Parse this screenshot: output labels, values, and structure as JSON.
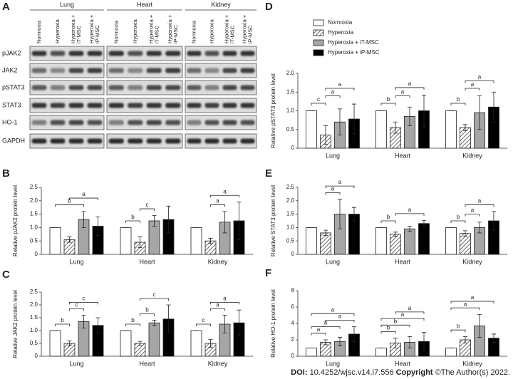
{
  "blot": {
    "panel": "A",
    "tissues": [
      "Lung",
      "Heart",
      "Kidney"
    ],
    "lanes": [
      "Normoxia",
      "Hyperoxia",
      "Hyperoxia + iT-MSC",
      "Hyperoxia + iP-MSC"
    ],
    "proteins": [
      "pJAK2",
      "JAK2",
      "pSTAT3",
      "STAT3",
      "HO-1",
      "GAPDH"
    ]
  },
  "chart_data": [
    {
      "type": "bar",
      "panel": "B",
      "ylabel": "Relative pJAK2 protein level",
      "categories": [
        "Lung",
        "Heart",
        "Kidney"
      ],
      "ylim": [
        0,
        2.5
      ],
      "yticks": [
        0,
        0.5,
        {
          "value": 1,
          "label": "1.0"
        },
        1.5,
        {
          "value": 2,
          "label": "2.0"
        },
        2.5
      ],
      "series": [
        {
          "color": "#ffffff",
          "values": [
            1.0,
            1.0,
            1.0
          ],
          "errors": [
            0,
            0,
            0
          ]
        },
        {
          "color": "#ffffff",
          "hatch": true,
          "values": [
            0.55,
            0.45,
            0.5
          ],
          "errors": [
            0.1,
            0.2,
            0.1
          ]
        },
        {
          "color": "#a6a6a6",
          "values": [
            1.3,
            1.25,
            1.2
          ],
          "errors": [
            0.3,
            0.2,
            0.4
          ]
        },
        {
          "color": "#000000",
          "values": [
            1.05,
            1.3,
            1.25
          ],
          "errors": [
            0.35,
            0.5,
            0.7
          ]
        }
      ],
      "annotations": [
        {
          "label": "b",
          "group": 0,
          "from": 0,
          "to": 2
        },
        {
          "label": "a",
          "group": 0,
          "from": 1,
          "to": 3
        },
        {
          "label": "b",
          "group": 1,
          "from": 0,
          "to": 1
        },
        {
          "label": "c",
          "group": 1,
          "from": 1,
          "to": 2
        },
        {
          "label": "a",
          "group": 2,
          "from": 1,
          "to": 2
        },
        {
          "label": "a",
          "group": 2,
          "from": 1,
          "to": 3
        }
      ]
    },
    {
      "type": "bar",
      "panel": "C",
      "ylabel": "Relative JAK2 protein level",
      "categories": [
        "Lung",
        "Heart",
        "Kidney"
      ],
      "ylim": [
        0,
        2.5
      ],
      "yticks": [
        0,
        0.5,
        {
          "value": 1,
          "label": "1.0"
        },
        1.5,
        {
          "value": 2,
          "label": "2.0"
        },
        2.5
      ],
      "series": [
        {
          "color": "#ffffff",
          "values": [
            1.0,
            1.0,
            1.0
          ],
          "errors": [
            0,
            0,
            0
          ]
        },
        {
          "color": "#ffffff",
          "hatch": true,
          "values": [
            0.5,
            0.5,
            0.5
          ],
          "errors": [
            0.1,
            0.08,
            0.15
          ]
        },
        {
          "color": "#a6a6a6",
          "values": [
            1.35,
            1.3,
            1.25
          ],
          "errors": [
            0.25,
            0.1,
            0.35
          ]
        },
        {
          "color": "#000000",
          "values": [
            1.2,
            1.45,
            1.3
          ],
          "errors": [
            0.3,
            0.55,
            0.5
          ]
        }
      ],
      "annotations": [
        {
          "label": "b",
          "group": 0,
          "from": 0,
          "to": 1
        },
        {
          "label": "c",
          "group": 0,
          "from": 1,
          "to": 2
        },
        {
          "label": "c",
          "group": 0,
          "from": 1,
          "to": 3
        },
        {
          "label": "b",
          "group": 1,
          "from": 0,
          "to": 1
        },
        {
          "label": "b",
          "group": 1,
          "from": 1,
          "to": 2
        },
        {
          "label": "c",
          "group": 1,
          "from": 1,
          "to": 3
        },
        {
          "label": "c",
          "group": 2,
          "from": 0,
          "to": 1
        },
        {
          "label": "a",
          "group": 2,
          "from": 1,
          "to": 2
        },
        {
          "label": "a",
          "group": 2,
          "from": 1,
          "to": 3
        }
      ]
    },
    {
      "type": "bar",
      "panel": "D",
      "ylabel": "Relative pSTAT3 protein level",
      "categories": [
        "Lung",
        "Heart",
        "Kidney"
      ],
      "ylim": [
        0,
        2.0
      ],
      "yticks": [
        0,
        0.5,
        {
          "value": 1,
          "label": "1.0"
        },
        1.5,
        {
          "value": 2,
          "label": "2.0"
        }
      ],
      "series": [
        {
          "name": "Normoxia",
          "color": "#ffffff",
          "values": [
            1.0,
            1.0,
            1.0
          ],
          "errors": [
            0,
            0,
            0
          ]
        },
        {
          "name": "Hyperoxia",
          "color": "#ffffff",
          "hatch": true,
          "values": [
            0.35,
            0.55,
            0.55
          ],
          "errors": [
            0.25,
            0.15,
            0.08
          ]
        },
        {
          "name": "Hyperoxia + iT-MSC",
          "color": "#a6a6a6",
          "values": [
            0.7,
            0.85,
            0.95
          ],
          "errors": [
            0.35,
            0.25,
            0.45
          ]
        },
        {
          "name": "Hyperoxia + iP-MSC",
          "color": "#000000",
          "values": [
            0.78,
            1.0,
            1.1
          ],
          "errors": [
            0.4,
            0.42,
            0.4
          ]
        }
      ],
      "annotations": [
        {
          "label": "c",
          "group": 0,
          "from": 0,
          "to": 1
        },
        {
          "label": "a",
          "group": 0,
          "from": 1,
          "to": 2
        },
        {
          "label": "a",
          "group": 0,
          "from": 1,
          "to": 3
        },
        {
          "label": "b",
          "group": 1,
          "from": 0,
          "to": 1
        },
        {
          "label": "a",
          "group": 1,
          "from": 1,
          "to": 2
        },
        {
          "label": "a",
          "group": 1,
          "from": 1,
          "to": 3
        },
        {
          "label": "b",
          "group": 2,
          "from": 0,
          "to": 1
        },
        {
          "label": "a",
          "group": 2,
          "from": 1,
          "to": 2
        },
        {
          "label": "a",
          "group": 2,
          "from": 1,
          "to": 3
        }
      ]
    },
    {
      "type": "bar",
      "panel": "E",
      "ylabel": "Relative STAT3 protein level",
      "categories": [
        "Lung",
        "Heart",
        "Kidney"
      ],
      "ylim": [
        0,
        2.5
      ],
      "yticks": [
        0,
        0.5,
        {
          "value": 1,
          "label": "1.0"
        },
        1.5,
        {
          "value": 2,
          "label": "2.0"
        },
        2.5
      ],
      "series": [
        {
          "color": "#ffffff",
          "values": [
            1.0,
            1.0,
            1.0
          ],
          "errors": [
            0,
            0,
            0
          ]
        },
        {
          "color": "#ffffff",
          "hatch": true,
          "values": [
            0.8,
            0.75,
            0.78
          ],
          "errors": [
            0.1,
            0.08,
            0.1
          ]
        },
        {
          "color": "#a6a6a6",
          "values": [
            1.5,
            0.95,
            1.0
          ],
          "errors": [
            0.55,
            0.1,
            0.2
          ]
        },
        {
          "color": "#000000",
          "values": [
            1.5,
            1.15,
            1.25
          ],
          "errors": [
            0.25,
            0.12,
            0.35
          ]
        }
      ],
      "annotations": [
        {
          "label": "a",
          "group": 0,
          "from": 1,
          "to": 2
        },
        {
          "label": "a",
          "group": 0,
          "from": 1,
          "to": 3
        },
        {
          "label": "b",
          "group": 1,
          "from": 0,
          "to": 1
        },
        {
          "label": "a",
          "group": 1,
          "from": 1,
          "to": 3
        },
        {
          "label": "b",
          "group": 2,
          "from": 0,
          "to": 1
        },
        {
          "label": "a",
          "group": 2,
          "from": 1,
          "to": 2
        },
        {
          "label": "a",
          "group": 2,
          "from": 1,
          "to": 3
        }
      ]
    },
    {
      "type": "bar",
      "panel": "F",
      "ylabel": "Relative HO-1 protein level",
      "categories": [
        "Lung",
        "Heart",
        "Kidney"
      ],
      "ylim": [
        0,
        8
      ],
      "yticks": [
        0,
        2,
        4,
        6,
        8
      ],
      "series": [
        {
          "color": "#ffffff",
          "values": [
            1.0,
            1.0,
            1.0
          ],
          "errors": [
            0,
            0,
            0
          ]
        },
        {
          "color": "#ffffff",
          "hatch": true,
          "values": [
            1.7,
            1.6,
            2.0
          ],
          "errors": [
            0.3,
            0.6,
            0.4
          ]
        },
        {
          "color": "#a6a6a6",
          "values": [
            1.8,
            1.7,
            3.7
          ],
          "errors": [
            0.5,
            0.7,
            1.4
          ]
        },
        {
          "color": "#000000",
          "values": [
            2.7,
            1.8,
            2.2
          ],
          "errors": [
            0.9,
            1.1,
            0.5
          ]
        }
      ],
      "annotations": [
        {
          "label": "a",
          "group": 0,
          "from": 0,
          "to": 1
        },
        {
          "label": "a",
          "group": 0,
          "from": 0,
          "to": 2
        },
        {
          "label": "a",
          "group": 0,
          "from": 1,
          "to": 3
        },
        {
          "label": "a",
          "group": 0,
          "from": 0,
          "to": 3
        },
        {
          "label": "b",
          "group": 1,
          "from": 0,
          "to": 1
        },
        {
          "label": "b",
          "group": 1,
          "from": 0,
          "to": 2
        },
        {
          "label": "a",
          "group": 1,
          "from": 0,
          "to": 3
        },
        {
          "label": "a",
          "group": 1,
          "from": 1,
          "to": 3
        },
        {
          "label": "b",
          "group": 2,
          "from": 0,
          "to": 1
        },
        {
          "label": "a",
          "group": 2,
          "from": 0,
          "to": 2
        },
        {
          "label": "a",
          "group": 2,
          "from": 0,
          "to": 3
        }
      ]
    }
  ],
  "footer": {
    "doi_label": "DOI:",
    "doi": "10.4252/wjsc.v14.i7.556",
    "copyright_label": "Copyright",
    "copyright": "©The Author(s) 2022."
  }
}
